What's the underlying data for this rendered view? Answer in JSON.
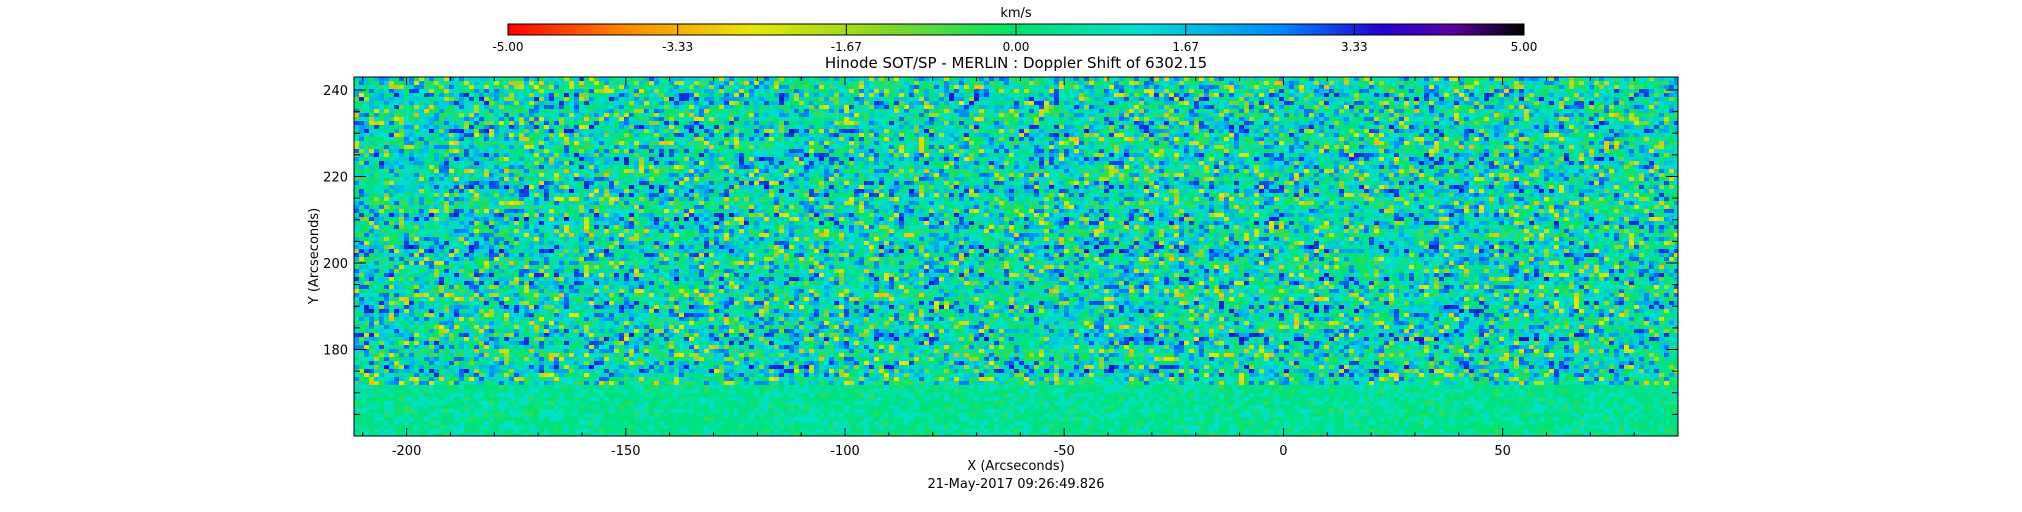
{
  "chart_data": {
    "type": "heatmap",
    "title": "Hinode SOT/SP - MERLIN : Doppler Shift of 6302.15",
    "xlabel": "X (Arcseconds)",
    "ylabel": "Y (Arcseconds)",
    "footer": "21-May-2017 09:26:49.826",
    "xlim": [
      -212,
      90
    ],
    "ylim": [
      160,
      243
    ],
    "x_ticks": [
      -200,
      -150,
      -100,
      -50,
      0,
      50
    ],
    "x_tick_labels": [
      "-200",
      "-150",
      "-100",
      "-50",
      "0",
      "50"
    ],
    "y_ticks": [
      180,
      200,
      220,
      240
    ],
    "y_tick_labels": [
      "180",
      "200",
      "220",
      "240"
    ],
    "colorbar": {
      "label": "km/s",
      "range": [
        -5.0,
        5.0
      ],
      "ticks": [
        -5.0,
        -3.33,
        -1.67,
        0.0,
        1.67,
        3.33,
        5.0
      ],
      "tick_labels": [
        "-5.00",
        "-3.33",
        "-1.67",
        "0.00",
        "1.67",
        "3.33",
        "5.00"
      ],
      "colors": [
        "#ff0000",
        "#ff8c00",
        "#e8e800",
        "#7cd62a",
        "#00e36e",
        "#00e0d0",
        "#0088ff",
        "#2200d4",
        "#5a00a0",
        "#000000"
      ]
    },
    "field_description": {
      "dominant_values_km_s": [
        0.0,
        0.9,
        1.5,
        2.6
      ],
      "quiet_band_y": [
        160,
        172
      ]
    }
  }
}
